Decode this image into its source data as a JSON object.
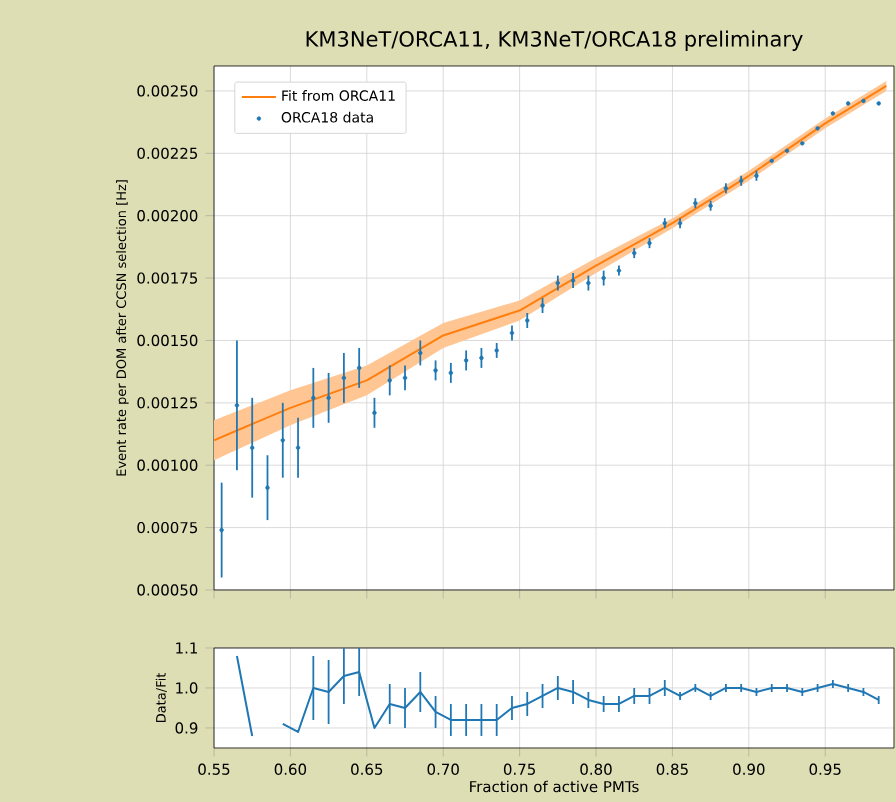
{
  "chart_data": [
    {
      "type": "scatter",
      "title": "KM3NeT/ORCA11, KM3NeT/ORCA18 preliminary",
      "ylabel": "Event rate per DOM after CCSN selection [Hz]",
      "xlim": [
        0.55,
        0.995
      ],
      "ylim": [
        0.0005,
        0.0026
      ],
      "xticks": [
        0.55,
        0.6,
        0.65,
        0.7,
        0.75,
        0.8,
        0.85,
        0.9,
        0.95
      ],
      "yticks": [
        {
          "value": 0.0005,
          "label": "0.00050"
        },
        {
          "value": 0.00075,
          "label": "0.00075"
        },
        {
          "value": 0.001,
          "label": "0.00100"
        },
        {
          "value": 0.00125,
          "label": "0.00125"
        },
        {
          "value": 0.0015,
          "label": "0.00150"
        },
        {
          "value": 0.00175,
          "label": "0.00175"
        },
        {
          "value": 0.002,
          "label": "0.00200"
        },
        {
          "value": 0.00225,
          "label": "0.00225"
        },
        {
          "value": 0.0025,
          "label": "0.00250"
        }
      ],
      "tick_labels": "y",
      "grid": true,
      "legend": "top left",
      "series": [
        {
          "name": "Fit from ORCA11",
          "type": "line",
          "color": "#ff7f0e",
          "x": [
            0.55,
            0.6,
            0.65,
            0.7,
            0.75,
            0.8,
            0.85,
            0.9,
            0.95,
            0.99
          ],
          "values": [
            0.0011,
            0.00123,
            0.00134,
            0.00152,
            0.00162,
            0.0018,
            0.00197,
            0.00216,
            0.00237,
            0.00252
          ],
          "lower": [
            0.00102,
            0.00116,
            0.00128,
            0.00147,
            0.00158,
            0.00177,
            0.00195,
            0.00214,
            0.00235,
            0.0025
          ],
          "upper": [
            0.00118,
            0.0013,
            0.0014,
            0.00157,
            0.00166,
            0.00183,
            0.00199,
            0.00218,
            0.00239,
            0.00254
          ]
        },
        {
          "name": "ORCA18 data",
          "color": "#1f77b4",
          "marker": "circle",
          "x": [
            0.555,
            0.565,
            0.575,
            0.585,
            0.595,
            0.605,
            0.615,
            0.625,
            0.635,
            0.645,
            0.655,
            0.665,
            0.675,
            0.685,
            0.695,
            0.705,
            0.715,
            0.725,
            0.735,
            0.745,
            0.755,
            0.765,
            0.775,
            0.785,
            0.795,
            0.805,
            0.815,
            0.825,
            0.835,
            0.845,
            0.855,
            0.865,
            0.875,
            0.885,
            0.895,
            0.905,
            0.915,
            0.925,
            0.935,
            0.945,
            0.955,
            0.965,
            0.975,
            0.985
          ],
          "values": [
            0.00074,
            0.00124,
            0.00107,
            0.00091,
            0.0011,
            0.00107,
            0.00127,
            0.00127,
            0.00135,
            0.00139,
            0.00121,
            0.00134,
            0.00135,
            0.00145,
            0.00138,
            0.00137,
            0.00142,
            0.00143,
            0.00146,
            0.00153,
            0.00158,
            0.00164,
            0.00173,
            0.00174,
            0.00173,
            0.00175,
            0.00178,
            0.00185,
            0.00189,
            0.00197,
            0.00197,
            0.00205,
            0.00204,
            0.00211,
            0.00214,
            0.00216,
            0.00222,
            0.00226,
            0.00229,
            0.00235,
            0.00241,
            0.00245,
            0.00246,
            0.00245
          ],
          "errors": [
            0.00019,
            0.00026,
            0.0002,
            0.00013,
            0.00015,
            0.00012,
            0.00012,
            0.0001,
            0.0001,
            8e-05,
            6e-05,
            6e-05,
            5e-05,
            5e-05,
            4e-05,
            4e-05,
            4e-05,
            4e-05,
            3e-05,
            3e-05,
            3e-05,
            3e-05,
            3e-05,
            3e-05,
            3e-05,
            3e-05,
            2e-05,
            2e-05,
            2e-05,
            2e-05,
            2e-05,
            2e-05,
            2e-05,
            2e-05,
            2e-05,
            2e-05,
            null,
            null,
            null,
            null,
            null,
            null,
            null,
            null
          ]
        }
      ]
    },
    {
      "type": "line",
      "xlabel": "Fraction of active PMTs",
      "ylabel": "Data/Fit",
      "xlim": [
        0.55,
        0.995
      ],
      "ylim": [
        0.85,
        1.1
      ],
      "xticks": [
        0.55,
        {
          "value": 0.6,
          "label": "0.60"
        },
        0.65,
        {
          "value": 0.7,
          "label": "0.70"
        },
        0.75,
        {
          "value": 0.8,
          "label": "0.80"
        },
        0.85,
        {
          "value": 0.9,
          "label": "0.90"
        },
        0.95
      ],
      "yticks": [
        0.9,
        {
          "value": 1.0,
          "label": "1.0"
        },
        1.1
      ],
      "grid": true,
      "series": [
        {
          "color": "#1f77b4",
          "x": [
            0.565,
            0.575,
            0.585,
            0.595,
            0.605,
            0.615,
            0.625,
            0.635,
            0.645,
            0.655,
            0.665,
            0.675,
            0.685,
            0.695,
            0.705,
            0.715,
            0.725,
            0.735,
            0.745,
            0.755,
            0.765,
            0.775,
            0.785,
            0.795,
            0.805,
            0.815,
            0.825,
            0.835,
            0.845,
            0.855,
            0.865,
            0.875,
            0.885,
            0.895,
            0.905,
            0.915,
            0.925,
            0.935,
            0.945,
            0.955,
            0.965,
            0.975,
            0.985
          ],
          "values": [
            1.08,
            0.88,
            null,
            0.91,
            0.89,
            1.0,
            0.99,
            1.03,
            1.04,
            0.9,
            0.96,
            0.95,
            0.99,
            0.94,
            0.92,
            0.92,
            0.92,
            0.92,
            0.95,
            0.96,
            0.98,
            1.0,
            0.99,
            0.97,
            0.96,
            0.96,
            0.98,
            0.98,
            1.0,
            0.98,
            1.0,
            0.98,
            1.0,
            1.0,
            0.99,
            1.0,
            1.0,
            0.99,
            1.0,
            1.01,
            1.0,
            0.99,
            0.97
          ],
          "errors": [
            null,
            null,
            null,
            null,
            null,
            0.08,
            0.08,
            0.07,
            0.06,
            null,
            0.05,
            0.05,
            0.05,
            0.04,
            0.04,
            0.04,
            0.04,
            0.04,
            0.03,
            0.03,
            0.03,
            0.03,
            0.03,
            0.02,
            0.02,
            0.02,
            0.02,
            0.02,
            0.02,
            0.01,
            0.01,
            0.01,
            0.01,
            0.01,
            0.01,
            0.01,
            0.01,
            0.01,
            0.01,
            0.01,
            0.01,
            0.01,
            0.01
          ]
        }
      ]
    }
  ]
}
